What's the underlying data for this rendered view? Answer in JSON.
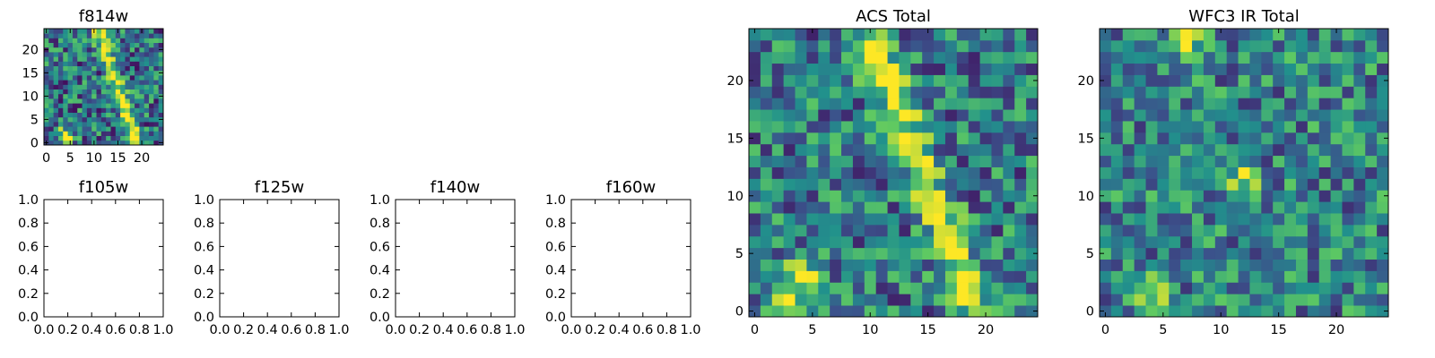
{
  "colors": {
    "axes": "#000000",
    "colormap": [
      "#440154",
      "#3b528b",
      "#21918c",
      "#5ec962",
      "#fde725"
    ]
  },
  "colormap_name": "viridis",
  "chart_data": [
    {
      "id": "f814w",
      "type": "heatmap",
      "title": "f814w",
      "xlim": [
        -0.5,
        24.5
      ],
      "ylim": [
        -0.5,
        24.5
      ],
      "xticks": [
        0,
        5,
        10,
        15,
        20
      ],
      "yticks": [
        0,
        5,
        10,
        15,
        20
      ],
      "xtick_labels": [
        "0",
        "5",
        "10",
        "15",
        "20"
      ],
      "ytick_labels": [
        "0",
        "5",
        "10",
        "15",
        "20"
      ],
      "grid": false,
      "rows": 25,
      "cols": 25,
      "image_model": {
        "background": 0.38,
        "background_noise": 0.34,
        "features": [
          {
            "shape": "ridge",
            "from": [
              11,
              24
            ],
            "to": [
              19,
              0
            ],
            "width": 1.0,
            "amplitude": 0.6
          },
          {
            "shape": "blob",
            "center": [
              4,
              1.5
            ],
            "sigma": 1.2,
            "amplitude": 0.65
          }
        ],
        "seed": 11
      }
    },
    {
      "id": "f105w",
      "type": "empty",
      "title": "f105w",
      "xlim": [
        0,
        1
      ],
      "ylim": [
        0,
        1
      ],
      "xticks": [
        0,
        0.2,
        0.4,
        0.6,
        0.8,
        1.0
      ],
      "yticks": [
        0,
        0.2,
        0.4,
        0.6,
        0.8,
        1.0
      ],
      "xtick_labels": [
        "0.0",
        "0.2",
        "0.4",
        "0.6",
        "0.8",
        "1.0"
      ],
      "ytick_labels": [
        "0.0",
        "0.2",
        "0.4",
        "0.6",
        "0.8",
        "1.0"
      ],
      "grid": false
    },
    {
      "id": "f125w",
      "type": "empty",
      "title": "f125w",
      "xlim": [
        0,
        1
      ],
      "ylim": [
        0,
        1
      ],
      "xticks": [
        0,
        0.2,
        0.4,
        0.6,
        0.8,
        1.0
      ],
      "yticks": [
        0,
        0.2,
        0.4,
        0.6,
        0.8,
        1.0
      ],
      "xtick_labels": [
        "0.0",
        "0.2",
        "0.4",
        "0.6",
        "0.8",
        "1.0"
      ],
      "ytick_labels": [
        "0.0",
        "0.2",
        "0.4",
        "0.6",
        "0.8",
        "1.0"
      ],
      "grid": false
    },
    {
      "id": "f140w",
      "type": "empty",
      "title": "f140w",
      "xlim": [
        0,
        1
      ],
      "ylim": [
        0,
        1
      ],
      "xticks": [
        0,
        0.2,
        0.4,
        0.6,
        0.8,
        1.0
      ],
      "yticks": [
        0,
        0.2,
        0.4,
        0.6,
        0.8,
        1.0
      ],
      "xtick_labels": [
        "0.0",
        "0.2",
        "0.4",
        "0.6",
        "0.8",
        "1.0"
      ],
      "ytick_labels": [
        "0.0",
        "0.2",
        "0.4",
        "0.6",
        "0.8",
        "1.0"
      ],
      "grid": false
    },
    {
      "id": "f160w",
      "type": "empty",
      "title": "f160w",
      "xlim": [
        0,
        1
      ],
      "ylim": [
        0,
        1
      ],
      "xticks": [
        0,
        0.2,
        0.4,
        0.6,
        0.8,
        1.0
      ],
      "yticks": [
        0,
        0.2,
        0.4,
        0.6,
        0.8,
        1.0
      ],
      "xtick_labels": [
        "0.0",
        "0.2",
        "0.4",
        "0.6",
        "0.8",
        "1.0"
      ],
      "ytick_labels": [
        "0.0",
        "0.2",
        "0.4",
        "0.6",
        "0.8",
        "1.0"
      ],
      "grid": false
    },
    {
      "id": "acs-total",
      "type": "heatmap",
      "title": "ACS Total",
      "xlim": [
        -0.5,
        24.5
      ],
      "ylim": [
        -0.5,
        24.5
      ],
      "xticks": [
        0,
        5,
        10,
        15,
        20
      ],
      "yticks": [
        0,
        5,
        10,
        15,
        20
      ],
      "xtick_labels": [
        "0",
        "5",
        "10",
        "15",
        "20"
      ],
      "ytick_labels": [
        "0",
        "5",
        "10",
        "15",
        "20"
      ],
      "grid": false,
      "rows": 25,
      "cols": 25,
      "image_model": {
        "background": 0.42,
        "background_noise": 0.32,
        "features": [
          {
            "shape": "ridge",
            "from": [
              10,
              24
            ],
            "to": [
              19,
              0
            ],
            "width": 1.1,
            "amplitude": 0.5
          },
          {
            "shape": "blob",
            "center": [
              3.5,
              2
            ],
            "sigma": 1.5,
            "amplitude": 0.55
          }
        ],
        "seed": 29
      }
    },
    {
      "id": "wfc3-ir-total",
      "type": "heatmap",
      "title": "WFC3 IR Total",
      "xlim": [
        -0.5,
        24.5
      ],
      "ylim": [
        -0.5,
        24.5
      ],
      "xticks": [
        0,
        5,
        10,
        15,
        20
      ],
      "yticks": [
        0,
        5,
        10,
        15,
        20
      ],
      "xtick_labels": [
        "0",
        "5",
        "10",
        "15",
        "20"
      ],
      "ytick_labels": [
        "0",
        "5",
        "10",
        "15",
        "20"
      ],
      "grid": false,
      "rows": 25,
      "cols": 25,
      "image_model": {
        "background": 0.45,
        "background_noise": 0.3,
        "features": [
          {
            "shape": "blob",
            "center": [
              7,
              23.5
            ],
            "sigma": 0.9,
            "amplitude": 0.6
          },
          {
            "shape": "blob",
            "center": [
              3.5,
              1.5
            ],
            "sigma": 1.1,
            "amplitude": 0.5
          },
          {
            "shape": "blob",
            "center": [
              12,
              11.5
            ],
            "sigma": 0.8,
            "amplitude": 0.5
          }
        ],
        "seed": 47
      }
    }
  ]
}
